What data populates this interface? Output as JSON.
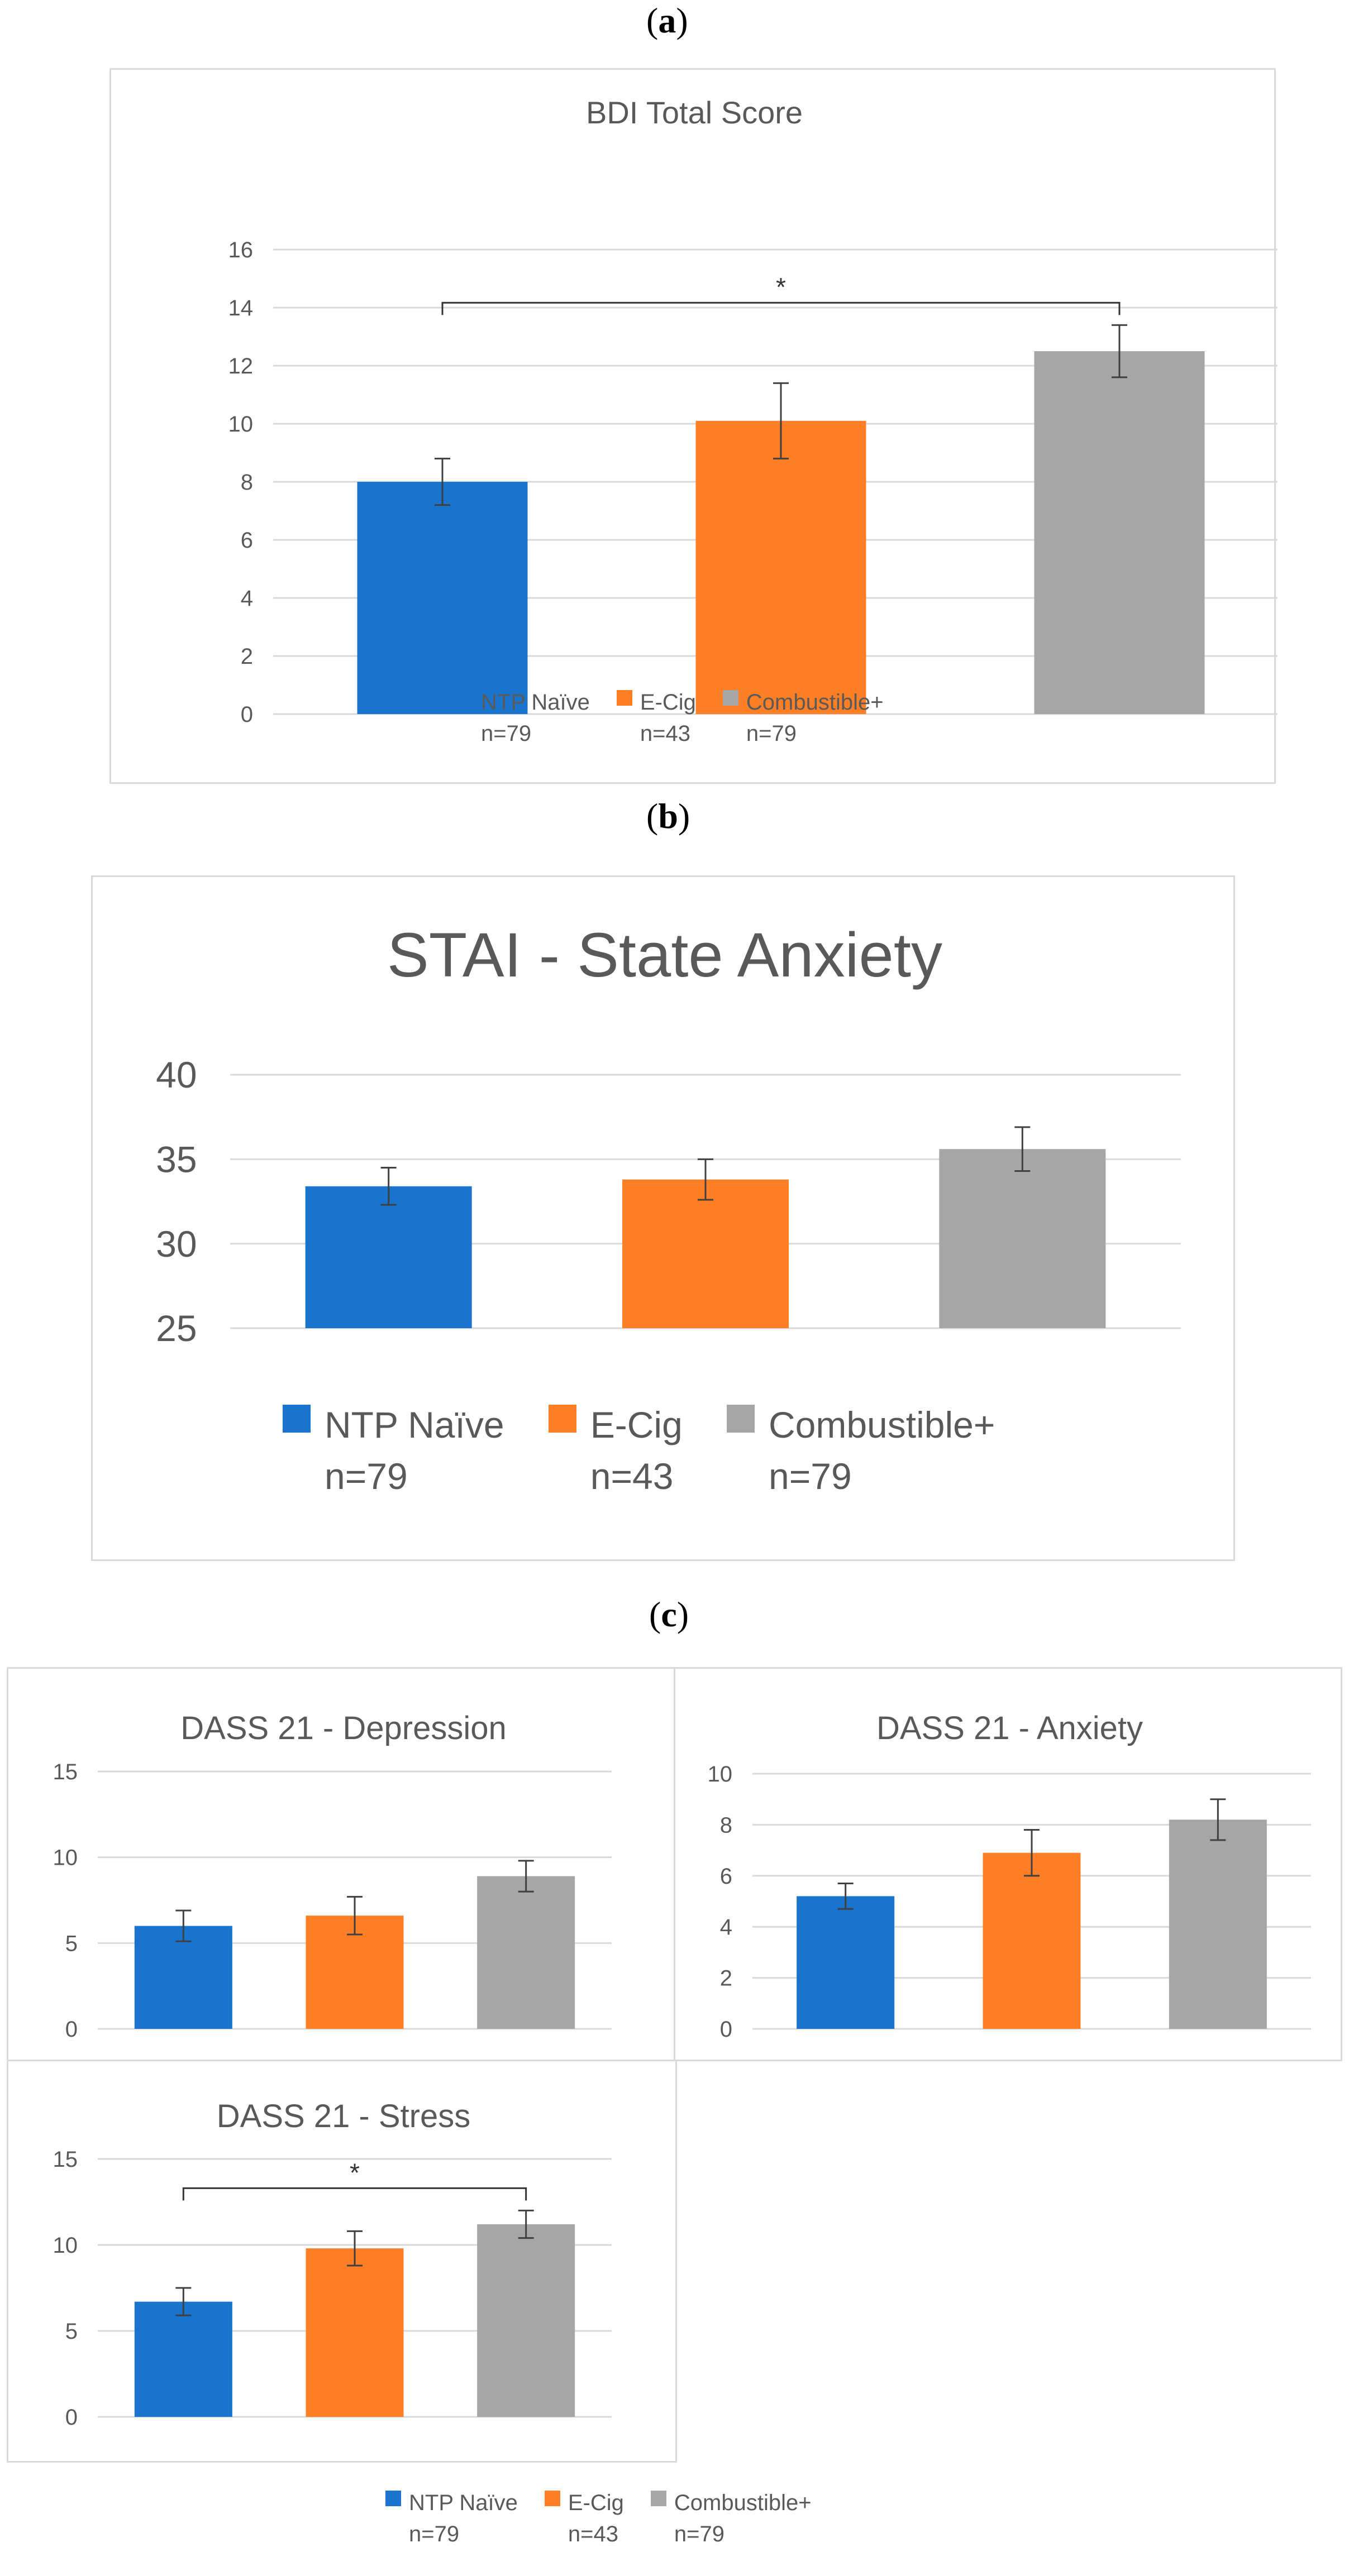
{
  "panel_labels": {
    "a": "a",
    "b": "b",
    "c": "c"
  },
  "legend": {
    "items": [
      {
        "name": "NTP Naïve",
        "n": "n=79",
        "color": "#1874CD"
      },
      {
        "name": "E-Cig",
        "n": "n=43",
        "color": "#FF7F27"
      },
      {
        "name": "Combustible+",
        "n": "n=79",
        "color": "#A6A6A6"
      }
    ]
  },
  "chart_data": [
    {
      "id": "bdi",
      "type": "bar",
      "title": "BDI Total Score",
      "categories": [
        "NTP Naïve",
        "E-Cig",
        "Combustible+"
      ],
      "values": [
        8.0,
        10.1,
        12.5
      ],
      "errors": [
        0.8,
        1.3,
        0.9
      ],
      "ylim": [
        0,
        16
      ],
      "yticks": [
        "0",
        "2",
        "4",
        "6",
        "8",
        "10",
        "12",
        "14",
        "16"
      ],
      "significance": {
        "from": 0,
        "to": 2,
        "label": "*"
      }
    },
    {
      "id": "stai",
      "type": "bar",
      "title": "STAI - State Anxiety",
      "categories": [
        "NTP Naïve",
        "E-Cig",
        "Combustible+"
      ],
      "values": [
        33.4,
        33.8,
        35.6
      ],
      "errors": [
        1.1,
        1.2,
        1.3
      ],
      "ylim": [
        25,
        40
      ],
      "yticks": [
        "25",
        "30",
        "35",
        "40"
      ]
    },
    {
      "id": "dass_dep",
      "type": "bar",
      "title": "DASS 21 - Depression",
      "categories": [
        "NTP Naïve",
        "E-Cig",
        "Combustible+"
      ],
      "values": [
        6.0,
        6.6,
        8.9
      ],
      "errors": [
        0.9,
        1.1,
        0.9
      ],
      "ylim": [
        0,
        15
      ],
      "yticks": [
        "0",
        "5",
        "10",
        "15"
      ]
    },
    {
      "id": "dass_anx",
      "type": "bar",
      "title": "DASS 21 - Anxiety",
      "categories": [
        "NTP Naïve",
        "E-Cig",
        "Combustible+"
      ],
      "values": [
        5.2,
        6.9,
        8.2
      ],
      "errors": [
        0.5,
        0.9,
        0.8
      ],
      "ylim": [
        0,
        10
      ],
      "yticks": [
        "0",
        "2",
        "4",
        "6",
        "8",
        "10"
      ]
    },
    {
      "id": "dass_stress",
      "type": "bar",
      "title": "DASS 21 - Stress",
      "categories": [
        "NTP Naïve",
        "E-Cig",
        "Combustible+"
      ],
      "values": [
        6.7,
        9.8,
        11.2
      ],
      "errors": [
        0.8,
        1.0,
        0.8
      ],
      "ylim": [
        0,
        15
      ],
      "yticks": [
        "0",
        "5",
        "10",
        "15"
      ],
      "significance": {
        "from": 0,
        "to": 2,
        "label": "*"
      }
    }
  ]
}
